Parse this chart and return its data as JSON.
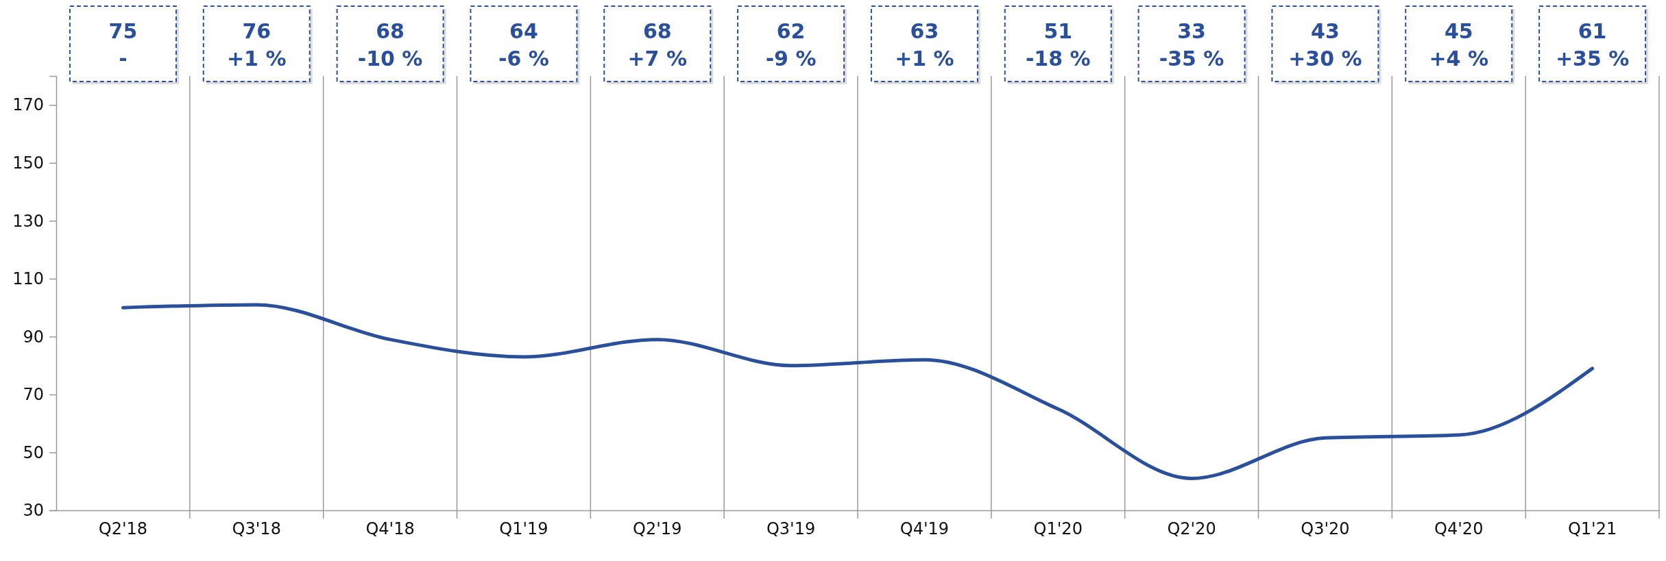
{
  "chart_data": {
    "type": "line",
    "categories": [
      "Q2'18",
      "Q3'18",
      "Q4'18",
      "Q1'19",
      "Q2'19",
      "Q3'19",
      "Q4'19",
      "Q1'20",
      "Q2'20",
      "Q3'20",
      "Q4'20",
      "Q1'21"
    ],
    "series": [
      {
        "color": "#2a4f9b",
        "values": [
          100,
          101,
          89,
          83,
          89,
          80,
          82,
          65,
          41,
          55,
          56,
          79
        ]
      }
    ],
    "ylim": [
      30,
      180
    ],
    "yticks": [
      30,
      50,
      70,
      90,
      110,
      130,
      150,
      170
    ],
    "grid": "x",
    "marker": "none",
    "line_style": "solid",
    "annotations": [
      "75\n-",
      "76\n+1 %",
      "68\n-10 %",
      "64\n-6 %",
      "68\n+7 %",
      "62\n-9 %",
      "63\n+1 %",
      "51\n-18 %",
      "33\n-35 %",
      "43\n+30 %",
      "45\n+4 %",
      "61\n+35 %"
    ]
  }
}
